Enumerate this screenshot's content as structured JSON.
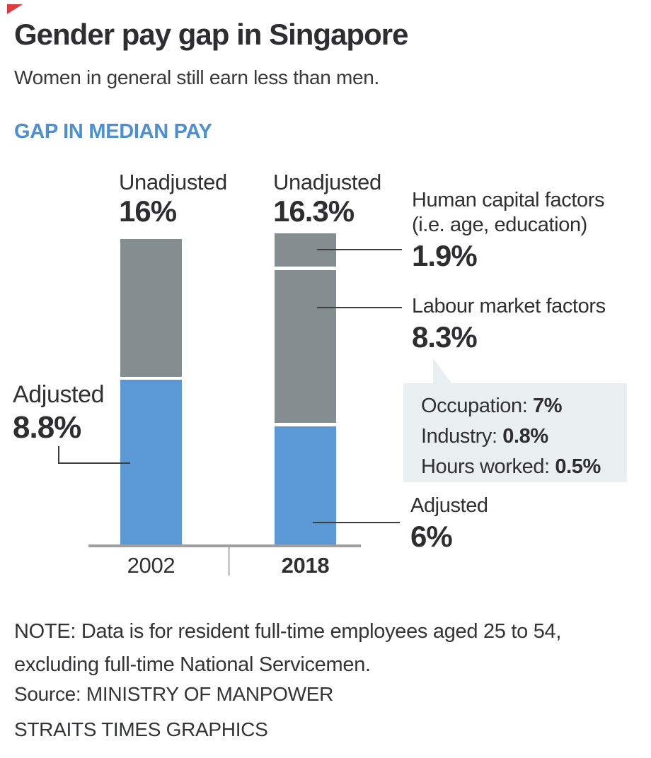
{
  "header": {
    "title": "Gender pay gap in Singapore",
    "subtitle": "Women in general still earn less than men.",
    "section_label": "GAP IN MEDIAN PAY"
  },
  "colors": {
    "heading_blue": "#4b90d4",
    "bar_blue": "#5b99d6",
    "bar_grey": "#848d8f",
    "tooltip_bg": "#e9eef0",
    "corner_marker_red": "#e13a3c",
    "axis_grey": "#9da0a0"
  },
  "chart": {
    "bar_2002": {
      "unadjusted_label": "Unadjusted",
      "unadjusted_value": "16%",
      "year": "2002"
    },
    "bar_2018": {
      "unadjusted_label": "Unadjusted",
      "unadjusted_value": "16.3%",
      "year": "2018"
    },
    "callouts": {
      "human_capital": {
        "line1": "Human capital factors",
        "line2": "(i.e. age, education)",
        "value": "1.9%"
      },
      "labour_market": {
        "label": "Labour market factors",
        "value": "8.3%"
      },
      "adjusted_2002": {
        "label": "Adjusted",
        "value": "8.8%"
      },
      "adjusted_2018": {
        "label": "Adjusted",
        "value": "6%"
      }
    },
    "tooltip": {
      "rows": [
        {
          "label": "Occupation: ",
          "value": "7%"
        },
        {
          "label": "Industry: ",
          "value": "0.8%"
        },
        {
          "label": "Hours worked: ",
          "value": "0.5%"
        }
      ]
    }
  },
  "chart_data": {
    "type": "bar",
    "stacked": true,
    "title": "GAP IN MEDIAN PAY",
    "unit": "%",
    "categories": [
      "2002",
      "2018"
    ],
    "totals_unadjusted": [
      16,
      16.3
    ],
    "series": [
      {
        "name": "Adjusted",
        "values": [
          8.8,
          6.0
        ],
        "color": "#5b99d6"
      },
      {
        "name": "Human capital factors (i.e. age, education)",
        "values": [
          null,
          1.9
        ],
        "color": "#848d8f"
      },
      {
        "name": "Labour market factors",
        "values": [
          null,
          8.3
        ],
        "color": "#848d8f"
      },
      {
        "name": "Unadjusted remainder",
        "values": [
          7.2,
          null
        ],
        "color": "#848d8f"
      }
    ],
    "annotations": {
      "labour_market_breakdown": {
        "Occupation": 7,
        "Industry": 0.8,
        "Hours worked": 0.5
      }
    },
    "ylim": [
      0,
      16.3
    ],
    "grid": false,
    "legend": false
  },
  "footer": {
    "note_line1": "NOTE: Data is for resident full-time employees aged 25 to 54,",
    "note_line2": "excluding full-time National Servicemen.",
    "source": "Source: MINISTRY OF MANPOWER",
    "credit": "STRAITS TIMES GRAPHICS"
  }
}
